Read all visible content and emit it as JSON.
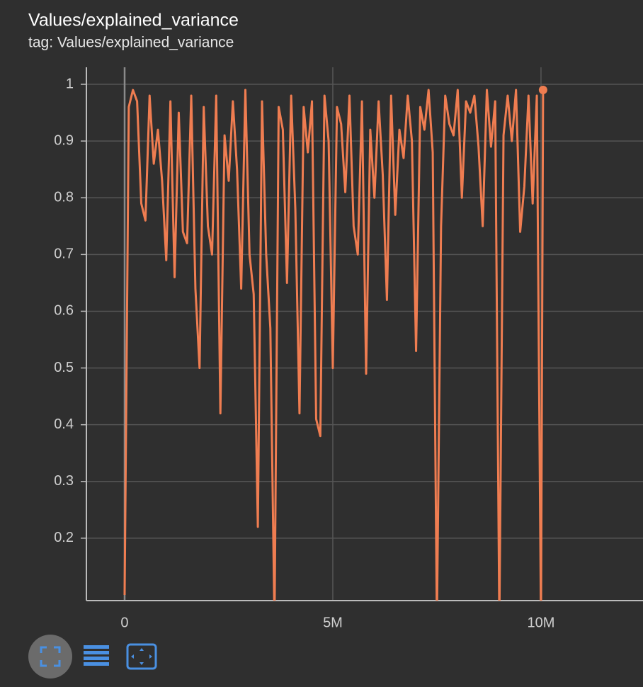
{
  "chart_data": {
    "type": "line",
    "title": "Values/explained_variance",
    "subtitle": "tag: Values/explained_variance",
    "x": [
      0,
      100000,
      200000,
      300000,
      400000,
      500000,
      600000,
      700000,
      800000,
      900000,
      1000000,
      1100000,
      1200000,
      1300000,
      1400000,
      1500000,
      1600000,
      1700000,
      1800000,
      1900000,
      2000000,
      2100000,
      2200000,
      2300000,
      2400000,
      2500000,
      2600000,
      2700000,
      2800000,
      2900000,
      3000000,
      3100000,
      3200000,
      3300000,
      3400000,
      3500000,
      3600000,
      3700000,
      3800000,
      3900000,
      4000000,
      4100000,
      4200000,
      4300000,
      4400000,
      4500000,
      4600000,
      4700000,
      4800000,
      4900000,
      5000000,
      5100000,
      5200000,
      5300000,
      5400000,
      5500000,
      5600000,
      5700000,
      5800000,
      5900000,
      6000000,
      6100000,
      6200000,
      6300000,
      6400000,
      6500000,
      6600000,
      6700000,
      6800000,
      6900000,
      7000000,
      7100000,
      7200000,
      7300000,
      7400000,
      7500000,
      7600000,
      7700000,
      7800000,
      7900000,
      8000000,
      8100000,
      8200000,
      8300000,
      8400000,
      8500000,
      8600000,
      8700000,
      8800000,
      8900000,
      9000000,
      9100000,
      9200000,
      9300000,
      9400000,
      9500000,
      9600000,
      9700000,
      9800000,
      9900000,
      10000000,
      10050000
    ],
    "series": [
      {
        "name": "explained_variance",
        "color": "#ef7d51",
        "values": [
          0.1,
          0.96,
          0.99,
          0.97,
          0.79,
          0.76,
          0.98,
          0.86,
          0.92,
          0.83,
          0.69,
          0.97,
          0.66,
          0.95,
          0.74,
          0.72,
          0.98,
          0.64,
          0.5,
          0.96,
          0.75,
          0.7,
          0.98,
          0.42,
          0.91,
          0.83,
          0.97,
          0.85,
          0.64,
          0.99,
          0.7,
          0.63,
          0.22,
          0.97,
          0.7,
          0.57,
          0.05,
          0.96,
          0.92,
          0.65,
          0.98,
          0.78,
          0.42,
          0.96,
          0.88,
          0.97,
          0.41,
          0.38,
          0.98,
          0.9,
          0.5,
          0.96,
          0.93,
          0.81,
          0.98,
          0.75,
          0.7,
          0.97,
          0.49,
          0.92,
          0.8,
          0.97,
          0.84,
          0.62,
          0.98,
          0.77,
          0.92,
          0.87,
          0.98,
          0.9,
          0.53,
          0.96,
          0.92,
          0.99,
          0.88,
          0.05,
          0.75,
          0.98,
          0.93,
          0.91,
          0.99,
          0.8,
          0.97,
          0.95,
          0.98,
          0.89,
          0.75,
          0.99,
          0.89,
          0.97,
          0.05,
          0.91,
          0.98,
          0.9,
          0.99,
          0.74,
          0.82,
          0.98,
          0.79,
          0.98,
          0.05,
          0.99
        ]
      }
    ],
    "xlim": [
      -918000,
      12450000
    ],
    "xticks": [
      0,
      {
        "value": 5000000,
        "label": "5M"
      },
      {
        "value": 10000000,
        "label": "10M"
      }
    ],
    "ylim": [
      0.09,
      1.03
    ],
    "yticks": [
      0.2,
      0.3,
      0.4,
      0.5,
      0.6,
      0.7,
      0.8,
      0.9,
      1
    ],
    "grid": true
  }
}
